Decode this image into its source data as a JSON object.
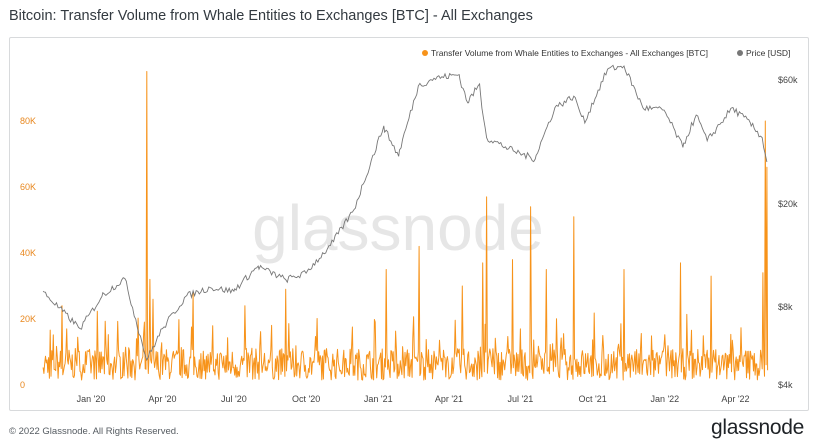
{
  "header": {
    "title": "Bitcoin: Transfer Volume from Whale Entities to Exchanges [BTC] - All Exchanges"
  },
  "footer": {
    "copyright": "© 2022 Glassnode. All Rights Reserved.",
    "brand": "glassnode"
  },
  "watermark": "glassnode",
  "colors": {
    "volume": "#f7931a",
    "price": "#777777",
    "left_axis": "#e8871e"
  },
  "chart_data": {
    "type": "line",
    "title": "Bitcoin: Transfer Volume from Whale Entities to Exchanges [BTC] - All Exchanges",
    "legend": {
      "placement": "top-right",
      "entries": [
        "Transfer Volume from Whale Entities to Exchanges - All Exchanges [BTC]",
        "Price [USD]"
      ]
    },
    "x_ticks": [
      "Jan '20",
      "Apr '20",
      "Jul '20",
      "Oct '20",
      "Jan '21",
      "Apr '21",
      "Jul '21",
      "Oct '21",
      "Jan '22",
      "Apr '22"
    ],
    "left_axis": {
      "ticks": [
        "0",
        "20K",
        "40K",
        "60K",
        "80K"
      ],
      "ylim": [
        0,
        100000
      ]
    },
    "right_axis": {
      "scale": "log",
      "ticks": [
        "$4k",
        "$8k",
        "$20k",
        "$60k"
      ],
      "ylim": [
        4000,
        75000
      ]
    },
    "series": [
      {
        "name": "Transfer Volume from Whale Entities to Exchanges - All Exchanges [BTC]",
        "axis": "left",
        "baseline_level": 6000,
        "peaks": [
          {
            "date": "2019-11-25",
            "value": 24000
          },
          {
            "date": "2019-12-01",
            "value": 17000
          },
          {
            "date": "2020-03-12",
            "value": 95000
          },
          {
            "date": "2020-03-16",
            "value": 32000
          },
          {
            "date": "2020-03-20",
            "value": 26000
          },
          {
            "date": "2020-05-10",
            "value": 28000
          },
          {
            "date": "2020-07-15",
            "value": 24000
          },
          {
            "date": "2020-09-05",
            "value": 29000
          },
          {
            "date": "2021-01-11",
            "value": 35000
          },
          {
            "date": "2021-02-22",
            "value": 42000
          },
          {
            "date": "2021-04-18",
            "value": 30000
          },
          {
            "date": "2021-05-14",
            "value": 37000
          },
          {
            "date": "2021-05-19",
            "value": 57000
          },
          {
            "date": "2021-06-21",
            "value": 38000
          },
          {
            "date": "2021-07-14",
            "value": 54000
          },
          {
            "date": "2021-08-03",
            "value": 35000
          },
          {
            "date": "2021-09-07",
            "value": 51000
          },
          {
            "date": "2021-11-10",
            "value": 35000
          },
          {
            "date": "2022-01-21",
            "value": 37000
          },
          {
            "date": "2022-03-01",
            "value": 33000
          },
          {
            "date": "2022-05-06",
            "value": 34000
          },
          {
            "date": "2022-05-09",
            "value": 80000
          },
          {
            "date": "2022-05-11",
            "value": 66000
          }
        ]
      },
      {
        "name": "Price [USD]",
        "axis": "right",
        "points": [
          {
            "date": "2019-11-01",
            "value": 9200
          },
          {
            "date": "2019-12-18",
            "value": 6600
          },
          {
            "date": "2020-01-15",
            "value": 8800
          },
          {
            "date": "2020-02-13",
            "value": 10300
          },
          {
            "date": "2020-03-12",
            "value": 5000
          },
          {
            "date": "2020-04-01",
            "value": 6600
          },
          {
            "date": "2020-05-01",
            "value": 8800
          },
          {
            "date": "2020-06-01",
            "value": 9500
          },
          {
            "date": "2020-07-01",
            "value": 9200
          },
          {
            "date": "2020-08-01",
            "value": 11500
          },
          {
            "date": "2020-09-05",
            "value": 10200
          },
          {
            "date": "2020-10-01",
            "value": 10800
          },
          {
            "date": "2020-11-01",
            "value": 13800
          },
          {
            "date": "2020-12-01",
            "value": 19000
          },
          {
            "date": "2021-01-08",
            "value": 40000
          },
          {
            "date": "2021-01-27",
            "value": 30500
          },
          {
            "date": "2021-02-21",
            "value": 57000
          },
          {
            "date": "2021-03-13",
            "value": 61000
          },
          {
            "date": "2021-04-14",
            "value": 63000
          },
          {
            "date": "2021-04-25",
            "value": 49000
          },
          {
            "date": "2021-05-10",
            "value": 58000
          },
          {
            "date": "2021-05-19",
            "value": 36000
          },
          {
            "date": "2021-06-22",
            "value": 32000
          },
          {
            "date": "2021-07-20",
            "value": 29800
          },
          {
            "date": "2021-08-14",
            "value": 47000
          },
          {
            "date": "2021-09-07",
            "value": 52000
          },
          {
            "date": "2021-09-21",
            "value": 41000
          },
          {
            "date": "2021-10-20",
            "value": 66000
          },
          {
            "date": "2021-11-10",
            "value": 68000
          },
          {
            "date": "2021-12-04",
            "value": 47000
          },
          {
            "date": "2021-12-31",
            "value": 46000
          },
          {
            "date": "2022-01-24",
            "value": 33000
          },
          {
            "date": "2022-02-10",
            "value": 44000
          },
          {
            "date": "2022-02-24",
            "value": 35000
          },
          {
            "date": "2022-03-28",
            "value": 47000
          },
          {
            "date": "2022-04-20",
            "value": 41000
          },
          {
            "date": "2022-05-05",
            "value": 36000
          },
          {
            "date": "2022-05-11",
            "value": 29000
          }
        ]
      }
    ]
  }
}
